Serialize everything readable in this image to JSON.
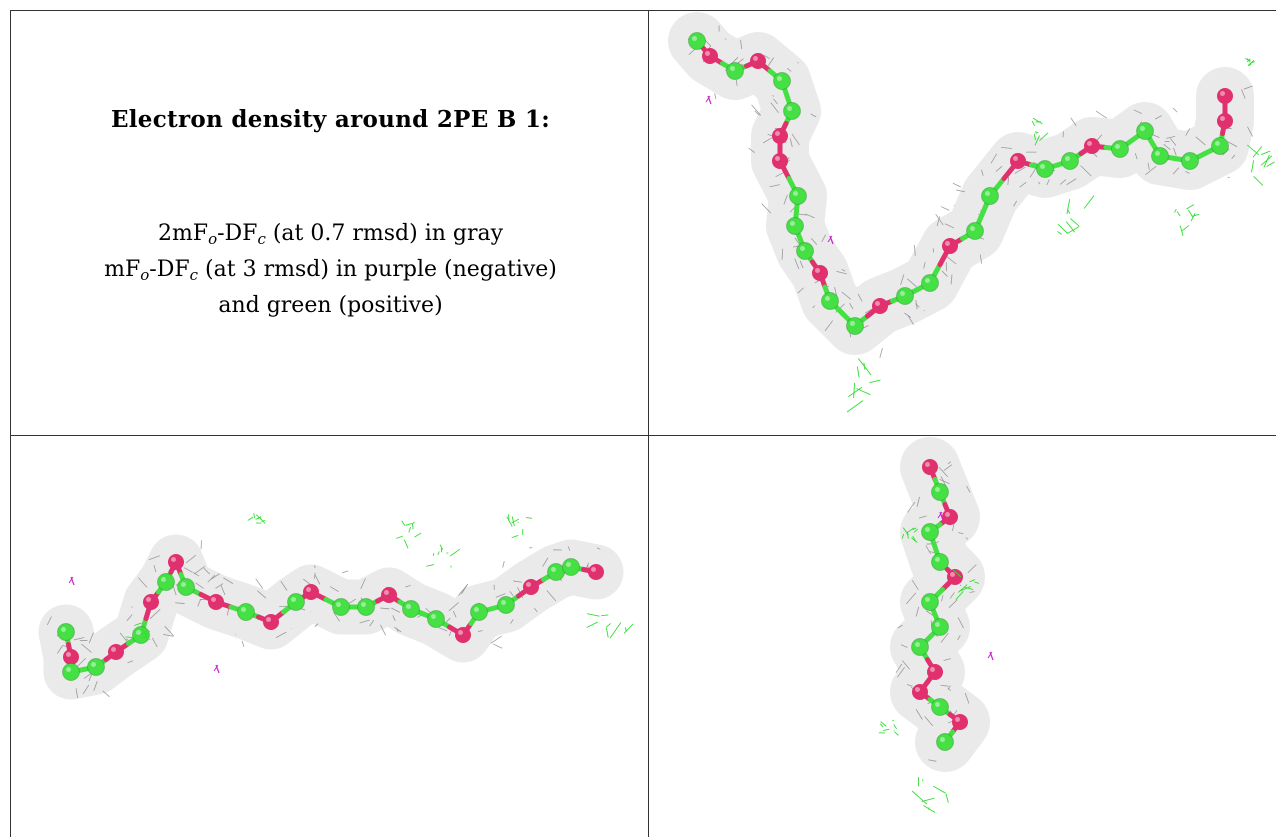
{
  "caption": {
    "title": "Electron density around 2PE B 1:",
    "line1_prefix": "2mF",
    "line1_sub1": "o",
    "line1_mid": "-DF",
    "line1_sub2": "c",
    "line1_suffix": " (at 0.7 rmsd) in gray",
    "line2_prefix": "mF",
    "line2_sub1": "o",
    "line2_mid": "-DF",
    "line2_sub2": "c",
    "line2_suffix": " (at 3 rmsd) in purple (negative)",
    "line3": "and green (positive)"
  },
  "colors": {
    "mesh_2fofc": "#8c8c8c",
    "mesh_positive": "#33dd33",
    "mesh_negative": "#cc22cc",
    "carbon": "#44e044",
    "oxygen": "#e0306e",
    "border": "#333333"
  },
  "views": [
    {
      "name": "view-top-right"
    },
    {
      "name": "view-bottom-left"
    },
    {
      "name": "view-bottom-right"
    }
  ]
}
